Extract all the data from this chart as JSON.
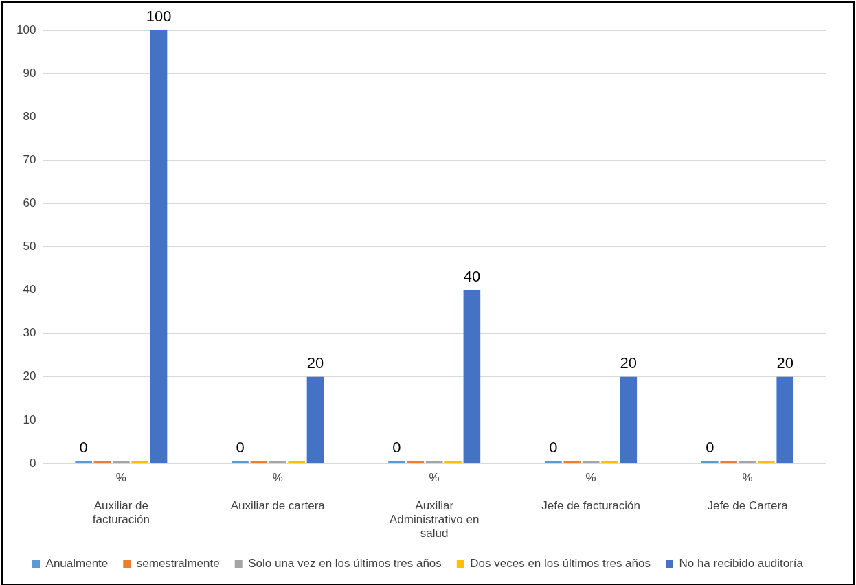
{
  "chart_data": {
    "type": "bar",
    "categories": [
      "%\nAuxiliar de facturación",
      "%\nAuxiliar de cartera",
      "%\nAuxiliar Administrativo en salud",
      "%\nJefe de facturación",
      "%\nJefe de Cartera"
    ],
    "series": [
      {
        "name": "Anualmente",
        "color": "#5b9bd5",
        "values": [
          0,
          0,
          0,
          0,
          0
        ],
        "value_labels": [
          "0",
          "0",
          "0",
          "0",
          "0"
        ]
      },
      {
        "name": "semestralmente",
        "color": "#ed7d31",
        "values": [
          0,
          0,
          0,
          0,
          0
        ]
      },
      {
        "name": "Solo una vez en los últimos tres años",
        "color": "#a5a5a5",
        "values": [
          0,
          0,
          0,
          0,
          0
        ]
      },
      {
        "name": "Dos veces en los últimos tres años",
        "color": "#ffc000",
        "values": [
          0,
          0,
          0,
          0,
          0
        ]
      },
      {
        "name": "No ha recibido auditoría",
        "color": "#4472c4",
        "values": [
          100,
          20,
          40,
          20,
          20
        ],
        "value_labels": [
          "100",
          "20",
          "40",
          "20",
          "20"
        ]
      }
    ],
    "ylim": [
      0,
      100
    ],
    "yticks": [
      0,
      10,
      20,
      30,
      40,
      50,
      60,
      70,
      80,
      90,
      100
    ],
    "grid": "y",
    "legend": "bottom"
  }
}
